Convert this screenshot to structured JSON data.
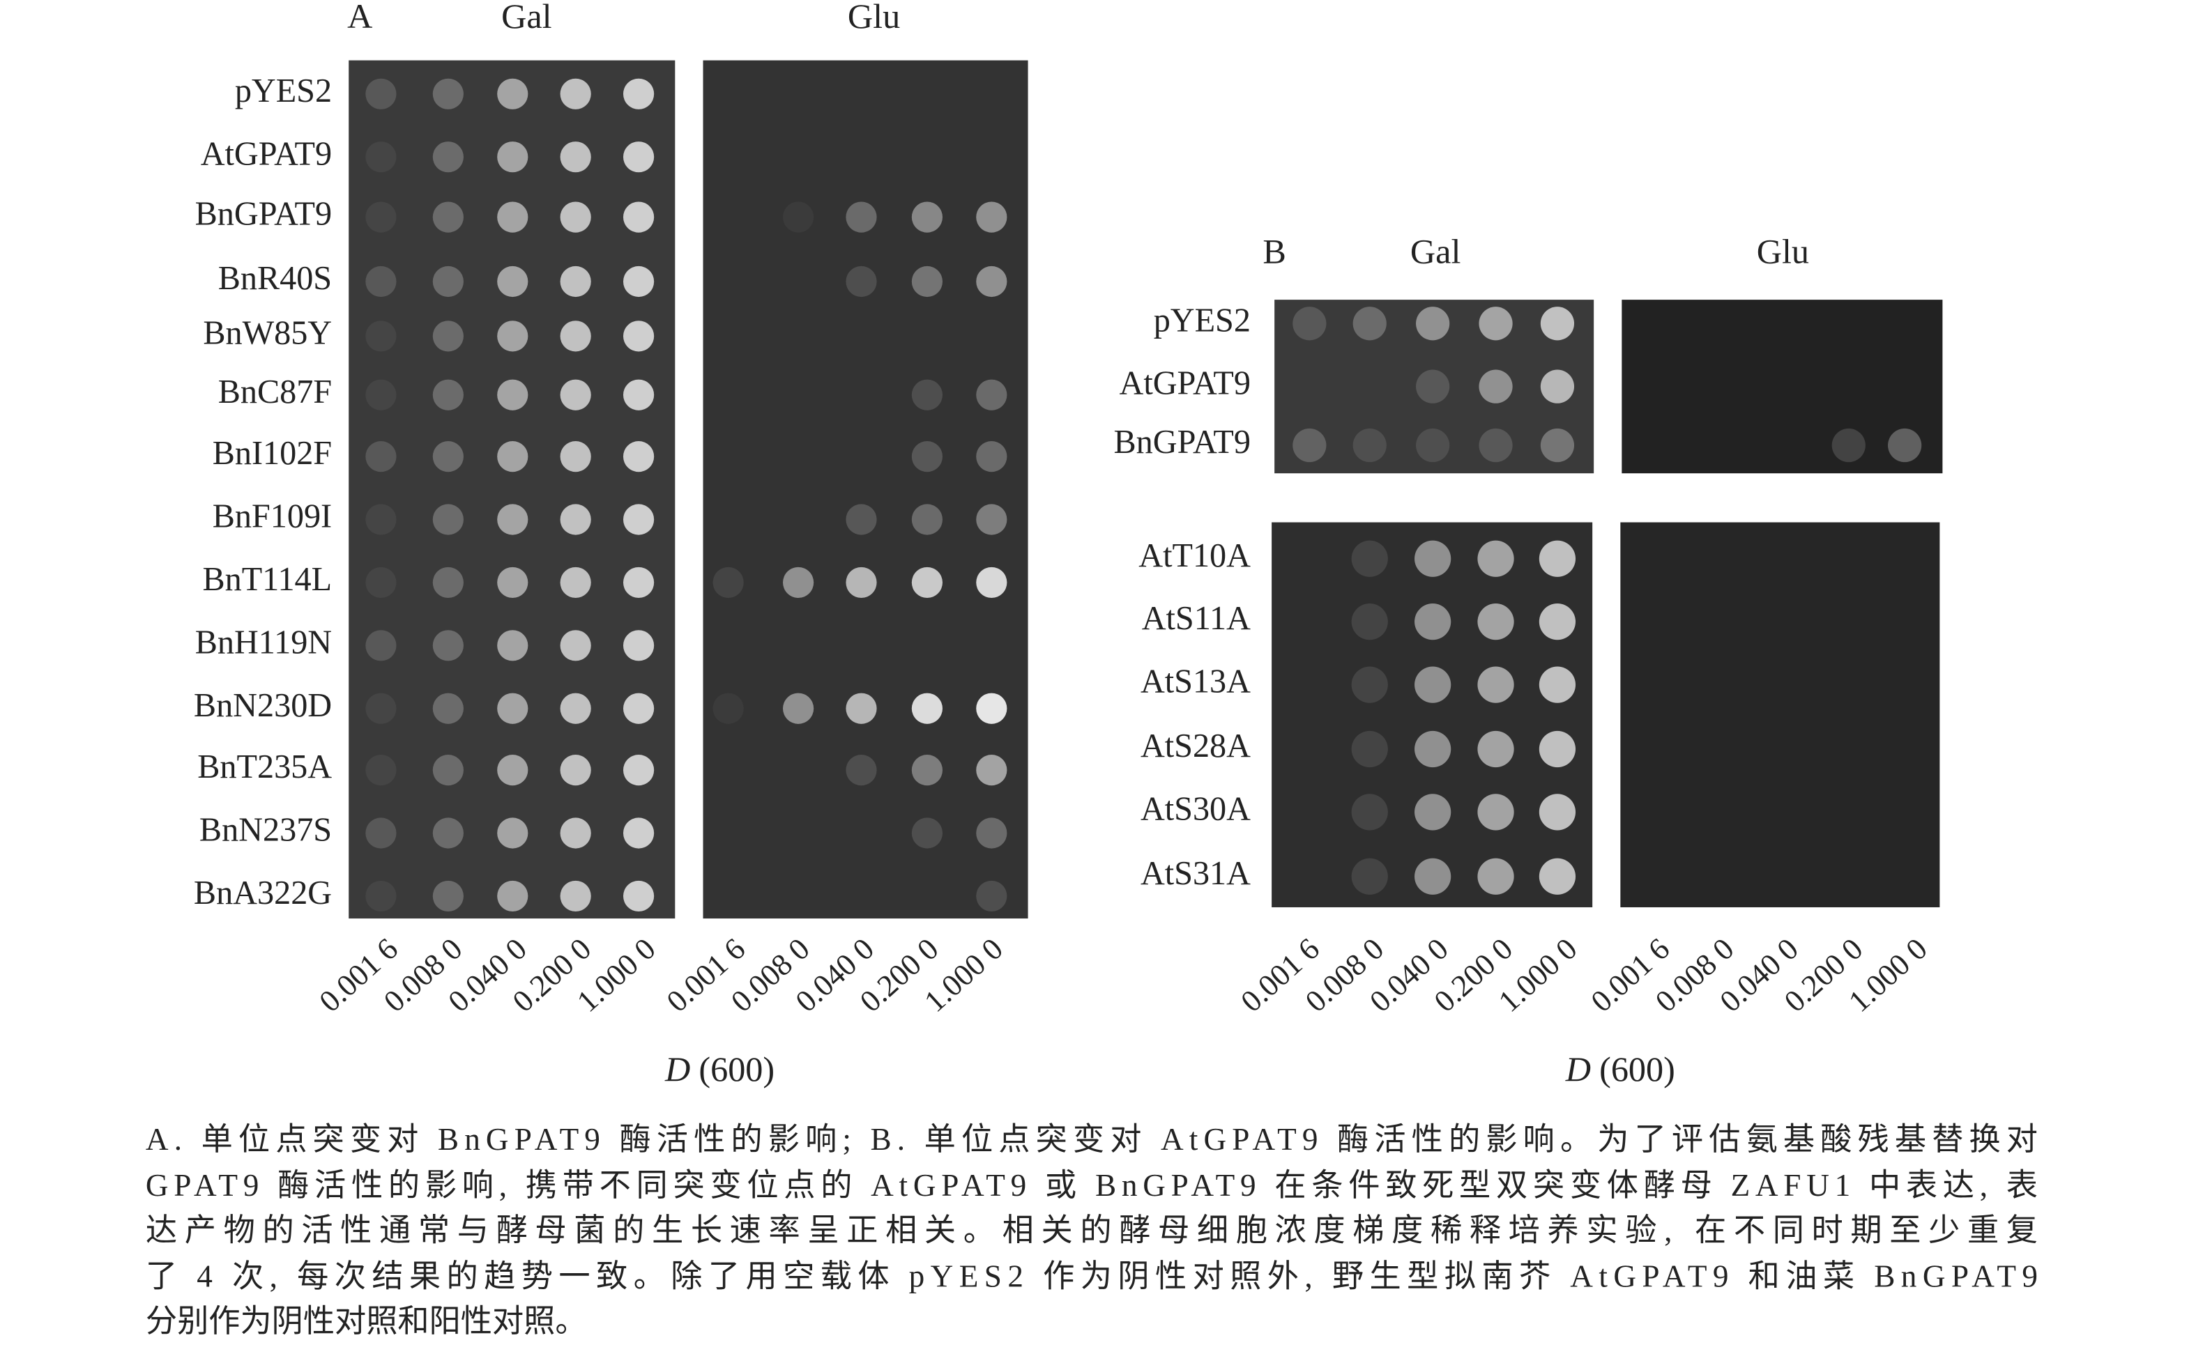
{
  "panel_a": {
    "label": "A",
    "conditions": [
      "Gal",
      "Glu"
    ],
    "strains": [
      "pYES2",
      "AtGPAT9",
      "BnGPAT9",
      "BnR40S",
      "BnW85Y",
      "BnC87F",
      "BnI102F",
      "BnF109I",
      "BnT114L",
      "BnH119N",
      "BnN230D",
      "BnT235A",
      "BnN237S",
      "BnA322G"
    ]
  },
  "panel_b": {
    "label": "B",
    "conditions": [
      "Gal",
      "Glu"
    ],
    "strains_top": [
      "pYES2",
      "AtGPAT9",
      "BnGPAT9"
    ],
    "strains_bottom": [
      "AtT10A",
      "AtS11A",
      "AtS13A",
      "AtS28A",
      "AtS30A",
      "AtS31A"
    ]
  },
  "dilutions": [
    "0.001 6",
    "0.008 0",
    "0.040 0",
    "0.200 0",
    "1.000 0"
  ],
  "axis_label": {
    "symbol": "D",
    "unit": "(600)"
  },
  "caption": [
    "A. 单位点突变对 BnGPAT9 酶活性的影响; B. 单位点突变对 AtGPAT9 酶活性的影响。为了评估氨基酸残基替换对",
    "GPAT9 酶活性的影响, 携带不同突变位点的 AtGPAT9 或 BnGPAT9 在条件致死型双突变体酵母 ZAFU1 中表达, 表",
    "达产物的活性通常与酵母菌的生长速率呈正相关。相关的酵母细胞浓度梯度稀释培养实验, 在不同时期至少重复",
    "了 4 次, 每次结果的趋势一致。除了用空载体 pYES2 作为阴性对照外, 野生型拟南芥 AtGPAT9 和油菜 BnGPAT9",
    "分别作为阴性对照和阳性对照。"
  ]
}
